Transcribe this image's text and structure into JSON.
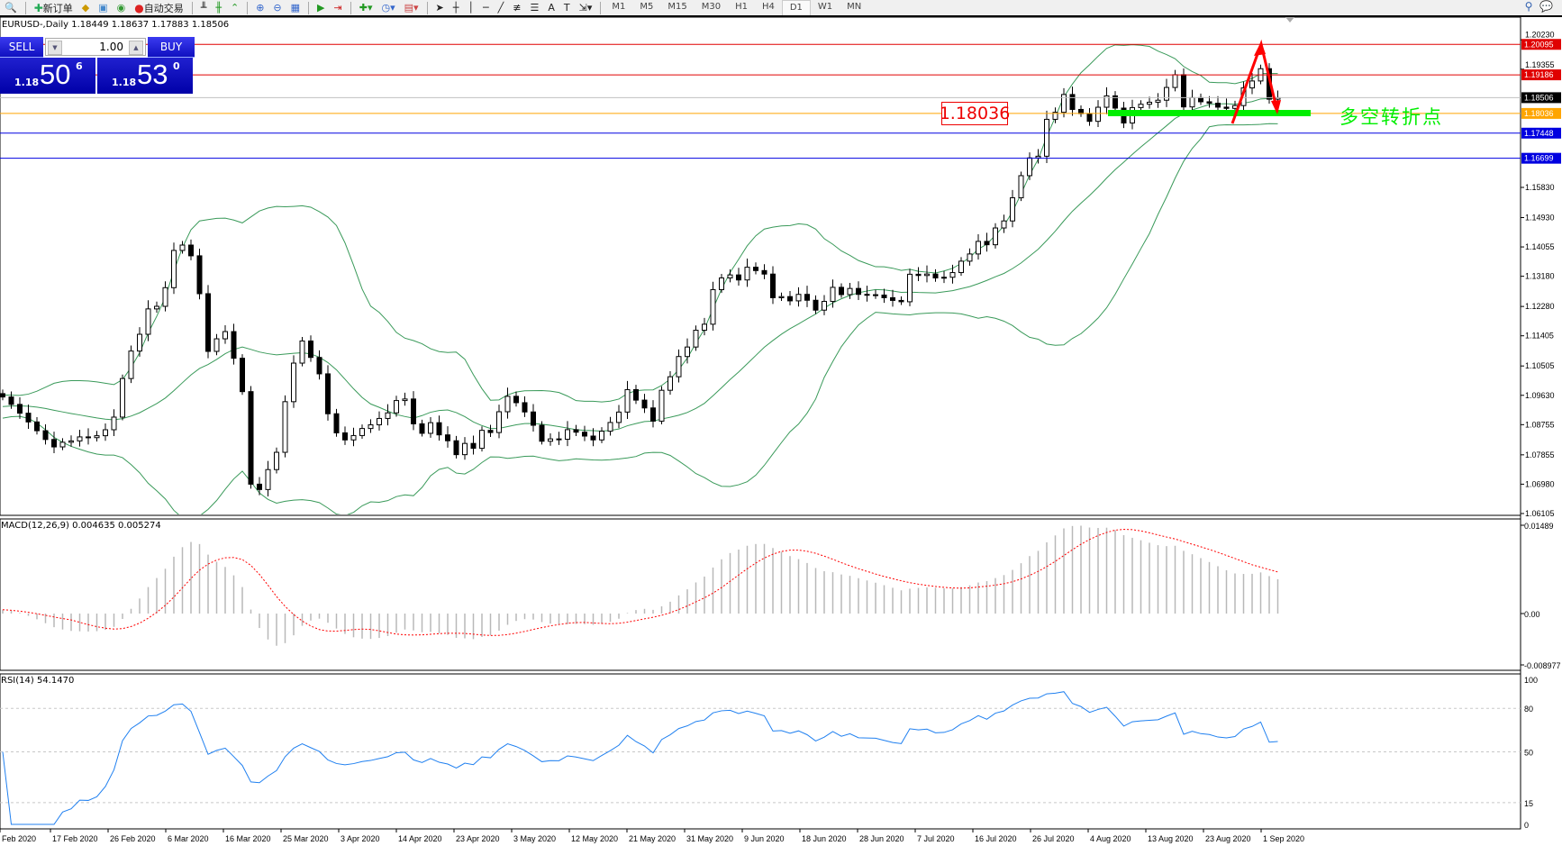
{
  "toolbar": {
    "new_order": "新订单",
    "auto_trading": "自动交易",
    "timeframes": [
      "M1",
      "M5",
      "M15",
      "M30",
      "H1",
      "H4",
      "D1",
      "W1",
      "MN"
    ],
    "active_timeframe": "D1"
  },
  "chart": {
    "title": "EURUSD-,Daily  1.18449 1.18637 1.17883 1.18506",
    "symbol": "EURUSD-",
    "period": "Daily"
  },
  "trade_panel": {
    "sell_label": "SELL",
    "buy_label": "BUY",
    "lot": "1.00",
    "sell_price": {
      "small": "1.18",
      "big": "50",
      "pip": "6"
    },
    "buy_price": {
      "small": "1.18",
      "big": "53",
      "pip": "0"
    }
  },
  "annotations": {
    "level_label": "1.18036",
    "text": "多空转折点"
  },
  "price_axis": {
    "ticks": [
      "1.20230",
      "1.19355",
      "1.15830",
      "1.14930",
      "1.14055",
      "1.13180",
      "1.12280",
      "1.11405",
      "1.10505",
      "1.09630",
      "1.08755",
      "1.07855",
      "1.06980",
      "1.06105"
    ]
  },
  "hlines": [
    {
      "price": "1.20095",
      "color": "#e00000"
    },
    {
      "price": "1.19186",
      "color": "#e00000"
    },
    {
      "price": "1.18506",
      "color": "#c0c0c0",
      "label_bg": "#000000"
    },
    {
      "price": "1.18036",
      "color": "#ffa500"
    },
    {
      "price": "1.17448",
      "color": "#0000e0"
    },
    {
      "price": "1.16699",
      "color": "#0000e0"
    }
  ],
  "macd": {
    "label": "MACD(12,26,9) 0.004635 0.005274",
    "axis": [
      "0.01489",
      "0.00",
      "-0.008977"
    ]
  },
  "rsi": {
    "label": "RSI(14) 54.1470",
    "axis": [
      "100",
      "80",
      "50",
      "15",
      "0"
    ]
  },
  "dates": [
    "Feb 2020",
    "17 Feb 2020",
    "26 Feb 2020",
    "6 Mar 2020",
    "16 Mar 2020",
    "25 Mar 2020",
    "3 Apr 2020",
    "14 Apr 2020",
    "23 Apr 2020",
    "3 May 2020",
    "12 May 2020",
    "21 May 2020",
    "31 May 2020",
    "9 Jun 2020",
    "18 Jun 2020",
    "28 Jun 2020",
    "7 Jul 2020",
    "16 Jul 2020",
    "26 Jul 2020",
    "4 Aug 2020",
    "13 Aug 2020",
    "23 Aug 2020",
    "1 Sep 2020"
  ],
  "colors": {
    "bands": "#3a9a5a",
    "rsi": "#2080f0",
    "macd_hist": "#b8b8b8",
    "macd_signal": "#ff0000",
    "arrow": "#ff0000",
    "support_bar": "#00ee00"
  },
  "chart_data": {
    "type": "candlestick",
    "close_path": [
      [
        0,
        1.0938
      ],
      [
        7,
        1.0811
      ],
      [
        9,
        1.0835
      ],
      [
        13,
        1.089
      ],
      [
        14,
        1.1013
      ],
      [
        16,
        1.1161
      ],
      [
        19,
        1.128
      ],
      [
        20,
        1.1399
      ],
      [
        22,
        1.1399
      ],
      [
        23,
        1.125
      ],
      [
        24,
        1.1102
      ],
      [
        26,
        1.1161
      ],
      [
        28,
        1.0954
      ],
      [
        29,
        1.0686
      ],
      [
        30,
        1.0686
      ],
      [
        32,
        1.0805
      ],
      [
        34,
        1.1043
      ],
      [
        35,
        1.1117
      ],
      [
        37,
        1.1035
      ],
      [
        38,
        1.0924
      ],
      [
        40,
        1.0818
      ],
      [
        42,
        1.086
      ],
      [
        44,
        1.0914
      ],
      [
        47,
        1.0952
      ],
      [
        48,
        1.087
      ],
      [
        51,
        1.0857
      ],
      [
        53,
        1.079
      ],
      [
        57,
        1.086
      ],
      [
        59,
        1.0968
      ],
      [
        60,
        1.0925
      ],
      [
        63,
        1.083
      ],
      [
        65,
        1.0844
      ],
      [
        69,
        1.083
      ],
      [
        71,
        1.0898
      ],
      [
        73,
        1.0968
      ],
      [
        76,
        1.0898
      ],
      [
        77,
        1.0998
      ],
      [
        80,
        1.1107
      ],
      [
        82,
        1.1191
      ],
      [
        84,
        1.1325
      ],
      [
        86,
        1.1311
      ],
      [
        88,
        1.1355
      ],
      [
        90,
        1.1262
      ],
      [
        93,
        1.1248
      ],
      [
        95,
        1.1205
      ],
      [
        97,
        1.1289
      ],
      [
        100,
        1.1248
      ],
      [
        102,
        1.1262
      ],
      [
        105,
        1.1262
      ],
      [
        106,
        1.1312
      ],
      [
        109,
        1.1325
      ],
      [
        112,
        1.1355
      ],
      [
        114,
        1.1414
      ],
      [
        116,
        1.1442
      ],
      [
        118,
        1.1548
      ],
      [
        119,
        1.1622
      ],
      [
        121,
        1.1696
      ],
      [
        122,
        1.177
      ],
      [
        124,
        1.186
      ],
      [
        126,
        1.1787
      ],
      [
        127,
        1.176
      ],
      [
        129,
        1.186
      ],
      [
        131,
        1.1787
      ],
      [
        135,
        1.1843
      ],
      [
        137,
        1.1935
      ],
      [
        138,
        1.1843
      ],
      [
        141,
        1.183
      ],
      [
        144,
        1.1843
      ],
      [
        147,
        1.1929
      ],
      [
        148,
        1.1862
      ],
      [
        149,
        1.18506
      ]
    ]
  }
}
